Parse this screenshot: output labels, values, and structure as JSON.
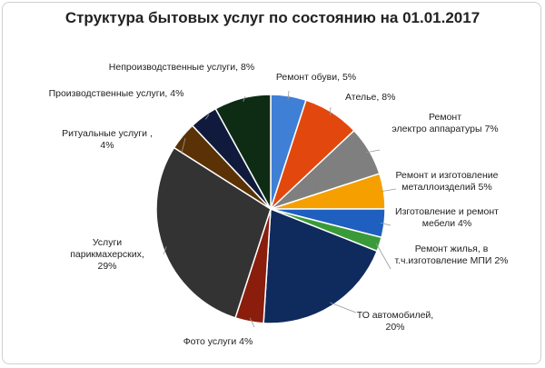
{
  "chart_data": {
    "type": "pie",
    "title": "Структура бытовых услуг по состоянию на 01.01.2017",
    "slices": [
      {
        "label_lines": [
          "Ремонт обуви, 5%"
        ],
        "value": 5,
        "color": "#3f7fd6"
      },
      {
        "label_lines": [
          "Ателье, 8%"
        ],
        "value": 8,
        "color": "#e2480d"
      },
      {
        "label_lines": [
          "Ремонт",
          "электро аппаратуры 7%"
        ],
        "value": 7,
        "color": "#7f7f7f"
      },
      {
        "label_lines": [
          "Ремонт и изготовление",
          "металлоизделий 5%"
        ],
        "value": 5,
        "color": "#f5a000"
      },
      {
        "label_lines": [
          "Изготовление и ремонт",
          "мебели 4%"
        ],
        "value": 4,
        "color": "#1f5fbf"
      },
      {
        "label_lines": [
          "Ремонт жилья, в",
          "т.ч.изготовление МПИ 2%"
        ],
        "value": 2,
        "color": "#3a9a3a"
      },
      {
        "label_lines": [
          "ТО автомобилей,",
          "20%"
        ],
        "value": 20,
        "color": "#0f2a5c"
      },
      {
        "label_lines": [
          "Фото услуги 4%"
        ],
        "value": 4,
        "color": "#8a1d0c"
      },
      {
        "label_lines": [
          "Услуги",
          "парикмахерских,",
          "29%"
        ],
        "value": 29,
        "color": "#333333"
      },
      {
        "label_lines": [
          "Ритуальные услуги ,",
          "4%"
        ],
        "value": 4,
        "color": "#5a3206"
      },
      {
        "label_lines": [
          "Производственные услуги, 4%"
        ],
        "value": 4,
        "color": "#101a3c"
      },
      {
        "label_lines": [
          "Непроизводственные услуги, 8%"
        ],
        "value": 8,
        "color": "#0e2c14"
      }
    ]
  }
}
